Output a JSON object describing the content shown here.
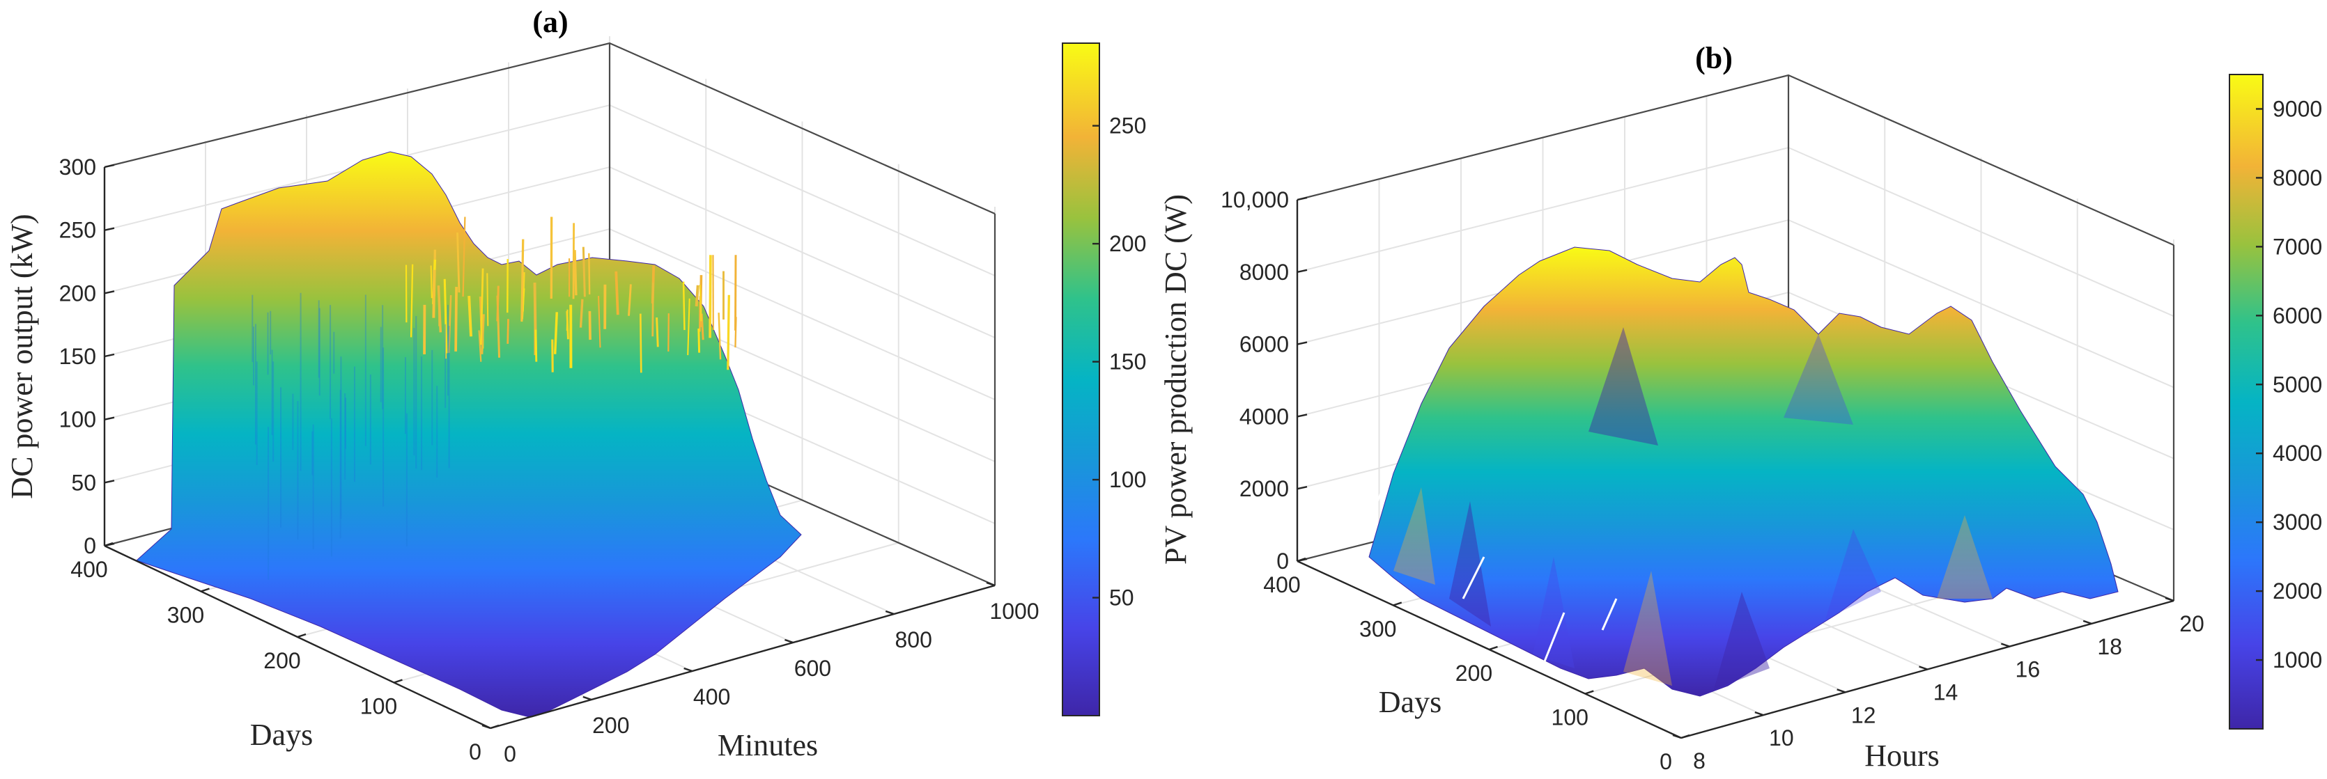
{
  "chart_data": [
    {
      "type": "surface",
      "title": "(a)",
      "xlabel": "Minutes",
      "ylabel": "Days",
      "zlabel": "DC power output (kW)",
      "xlim": [
        0,
        1000
      ],
      "ylim": [
        0,
        400
      ],
      "zlim": [
        0,
        300
      ],
      "xticks": [
        "0",
        "200",
        "400",
        "600",
        "800",
        "1000"
      ],
      "yticks": [
        "0",
        "100",
        "200",
        "300",
        "400"
      ],
      "zticks": [
        "0",
        "50",
        "100",
        "150",
        "200",
        "250",
        "300"
      ],
      "colorbar": {
        "min": 0,
        "max": 285,
        "ticks": [
          "50",
          "100",
          "150",
          "200",
          "250"
        ]
      },
      "description_values": {
        "peak_kw": 285,
        "active_minutes": [
          300,
          1000
        ]
      }
    },
    {
      "type": "surface",
      "title": "(b)",
      "xlabel": "Hours",
      "ylabel": "Days",
      "zlabel": "PV power production DC (W)",
      "xlim": [
        8,
        20
      ],
      "ylim": [
        0,
        400
      ],
      "zlim": [
        0,
        10000
      ],
      "xticks": [
        "8",
        "10",
        "12",
        "14",
        "16",
        "18",
        "20"
      ],
      "yticks": [
        "0",
        "100",
        "200",
        "300",
        "400"
      ],
      "zticks": [
        "0",
        "2000",
        "4000",
        "6000",
        "8000",
        "10,000"
      ],
      "colorbar": {
        "min": 0,
        "max": 9500,
        "ticks": [
          "1000",
          "2000",
          "3000",
          "4000",
          "5000",
          "6000",
          "7000",
          "8000",
          "9000"
        ]
      },
      "description_values": {
        "peak_w": 9500,
        "active_hours": [
          8,
          19
        ]
      }
    }
  ]
}
